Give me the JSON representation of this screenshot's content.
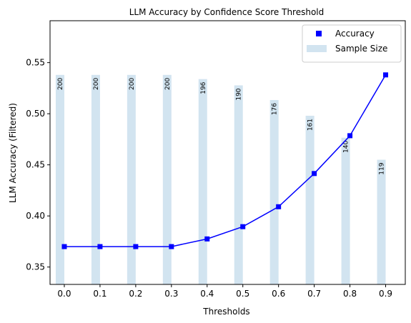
{
  "chart_data": {
    "type": "bar+line",
    "title": "LLM Accuracy by Confidence Score Threshold",
    "xlabel": "Thresholds",
    "ylabel": "LLM Accuracy (Filtered)",
    "x": [
      0.0,
      0.1,
      0.2,
      0.3,
      0.4,
      0.5,
      0.6,
      0.7,
      0.8,
      0.9
    ],
    "x_tick_labels": [
      "0.0",
      "0.1",
      "0.2",
      "0.3",
      "0.4",
      "0.5",
      "0.6",
      "0.7",
      "0.8",
      "0.9"
    ],
    "xlim": [
      -0.04,
      0.955
    ],
    "ylim": [
      0.333,
      0.591
    ],
    "y_ticks": [
      0.35,
      0.4,
      0.45,
      0.5,
      0.55
    ],
    "y_tick_labels": [
      "0.35",
      "0.40",
      "0.45",
      "0.50",
      "0.55"
    ],
    "series": [
      {
        "name": "Accuracy",
        "kind": "line",
        "color": "#0000ff",
        "marker": "square",
        "values": [
          0.37,
          0.37,
          0.37,
          0.37,
          0.3775,
          0.3895,
          0.409,
          0.4415,
          0.4785,
          0.538
        ]
      },
      {
        "name": "Sample Size",
        "kind": "bar",
        "color": "#1f77b4",
        "opacity": 0.2,
        "values": [
          200,
          200,
          200,
          200,
          196,
          190,
          176,
          161,
          140,
          119
        ],
        "labels": [
          "200",
          "200",
          "200",
          "200",
          "196",
          "190",
          "176",
          "161",
          "140",
          "119"
        ]
      }
    ],
    "sample_size_axis_note": "bars share plot area; tallest bar (200) reaches accuracy 0.538",
    "legend": {
      "position": "top-right",
      "entries": [
        "Accuracy",
        "Sample Size"
      ]
    },
    "grid": false
  }
}
